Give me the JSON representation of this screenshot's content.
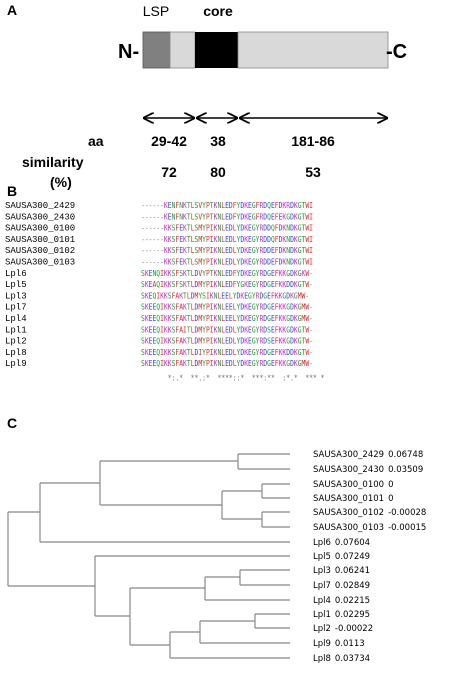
{
  "panel_a": {
    "label": "A",
    "domains": [
      "LSP",
      "core"
    ],
    "n_terminus": "N-",
    "c_terminus": "-C",
    "row_labels": [
      "aa",
      "similarity",
      "(%)"
    ],
    "aa": [
      "29-42",
      "38",
      "181-86"
    ],
    "similarity": [
      "72",
      "80",
      "53"
    ]
  },
  "panel_b": {
    "label": "B",
    "sequences": [
      {
        "name": "SAUSA300_2429",
        "sequence": "------KENFNKTLSVYPTKNLEDFYDKEGFRDQEFDKRDKGTWI"
      },
      {
        "name": "SAUSA300_2430",
        "sequence": "------KENFNKTLSVYPTKNLEDFYDKEGFRDQEFEKGDKGTWI"
      },
      {
        "name": "SAUSA300_0100",
        "sequence": "------KKSFEKTLSMYPIKNLEDLYDKEGYRDDQFDKNDKGTWI"
      },
      {
        "name": "SAUSA300_0101",
        "sequence": "------KKSFEKTLSMYPIKNLEDLYDKEGYRDDQFDKNDKGTWI"
      },
      {
        "name": "SAUSA300_0102",
        "sequence": "------KKSFEKTLSMYPIKNLEDLYDKEGYRDDEFDKNDKGTWI"
      },
      {
        "name": "SAUSA300_0103",
        "sequence": "------KKSFEKTLSMYPIKNLEDLYDKEGYRDDEFDKNDKGTWI"
      },
      {
        "name": "Lpl6",
        "sequence": "SKENQIKKSFSKTLDVYPTKNLEDFYDKEGYRDGEFKKGDKGKW-"
      },
      {
        "name": "Lpl5",
        "sequence": "SKEAQIKKSFSKTLDMYPIKNLEDFYGKEGYRDGEFKKDDKGTW-"
      },
      {
        "name": "Lpl3",
        "sequence": "SKEQIKKSFAKTLDMYSIKNLEELYDKEGYRDGEFKKGDKGMW-"
      },
      {
        "name": "Lpl7",
        "sequence": "SKEEQIKKSFAKTLDMYPIKNLEELYDKEGYRDGEFKKGDKGMW-"
      },
      {
        "name": "Lpl4",
        "sequence": "SKEEQIKKSFAKTLDMYPIKNLEELYDKEGYRDGEFKKGDKGMW-"
      },
      {
        "name": "Lpl1",
        "sequence": "SKEEQIKKSFAITLDMYPIKNLEDLYDKEGYRDSEFKKGDKGTW-"
      },
      {
        "name": "Lpl2",
        "sequence": "SKEEQIKKSFAKTLDMYPIKNLEDLYDKEGYRDSEFKKGDKGTW-"
      },
      {
        "name": "Lpl8",
        "sequence": "SKEEQIKKSFAKTLDIYPIKNLEDLYDKEGYRDGEFKKDDKGTW-"
      },
      {
        "name": "Lpl9",
        "sequence": "SKEEQIKKSFAKTLDMYPIKNLEDLYDKEGYRDGEFKKGDKGMW-"
      }
    ],
    "conservation": "       *:.*  **.:*  ****::*  ***:**  :*.*  *** *"
  },
  "panel_c": {
    "label": "C",
    "leaves": [
      {
        "name": "SAUSA300_2429",
        "value": "0.06748"
      },
      {
        "name": "SAUSA300_2430",
        "value": "0.03509"
      },
      {
        "name": "SAUSA300_0100",
        "value": "0"
      },
      {
        "name": "SAUSA300_0101",
        "value": "0"
      },
      {
        "name": "SAUSA300_0102",
        "value": "-0.00028"
      },
      {
        "name": "SAUSA300_0103",
        "value": "-0.00015"
      },
      {
        "name": "Lpl6",
        "value": "0.07604"
      },
      {
        "name": "Lpl5",
        "value": "0.07249"
      },
      {
        "name": "Lpl3",
        "value": "0.06241"
      },
      {
        "name": "Lpl7",
        "value": "0.02849"
      },
      {
        "name": "Lpl4",
        "value": "0.02215"
      },
      {
        "name": "Lpl1",
        "value": "0.02295"
      },
      {
        "name": "Lpl2",
        "value": "-0.00022"
      },
      {
        "name": "Lpl9",
        "value": "0.0113"
      },
      {
        "name": "Lpl8",
        "value": "0.03734"
      }
    ]
  }
}
